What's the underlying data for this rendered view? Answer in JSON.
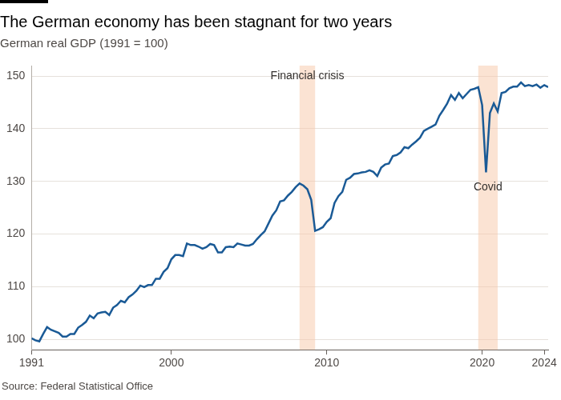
{
  "chart_data": {
    "type": "line",
    "title": "The German economy has been stagnant for two years",
    "subtitle": "German real GDP (1991 = 100)",
    "source": "Source: Federal Statistical Office",
    "color": "#1a5a96",
    "grid": true,
    "x": [
      1991,
      1991.25,
      1991.5,
      1991.75,
      1992,
      1992.25,
      1992.5,
      1992.75,
      1993,
      1993.25,
      1993.5,
      1993.75,
      1994,
      1994.25,
      1994.5,
      1994.75,
      1995,
      1995.25,
      1995.5,
      1995.75,
      1996,
      1996.25,
      1996.5,
      1996.75,
      1997,
      1997.25,
      1997.5,
      1997.75,
      1998,
      1998.25,
      1998.5,
      1998.75,
      1999,
      1999.25,
      1999.5,
      1999.75,
      2000,
      2000.25,
      2000.5,
      2000.75,
      2001,
      2001.25,
      2001.5,
      2001.75,
      2002,
      2002.25,
      2002.5,
      2002.75,
      2003,
      2003.25,
      2003.5,
      2003.75,
      2004,
      2004.25,
      2004.5,
      2004.75,
      2005,
      2005.25,
      2005.5,
      2005.75,
      2006,
      2006.25,
      2006.5,
      2006.75,
      2007,
      2007.25,
      2007.5,
      2007.75,
      2008,
      2008.25,
      2008.5,
      2008.75,
      2009,
      2009.25,
      2009.5,
      2009.75,
      2010,
      2010.25,
      2010.5,
      2010.75,
      2011,
      2011.25,
      2011.5,
      2011.75,
      2012,
      2012.25,
      2012.5,
      2012.75,
      2013,
      2013.25,
      2013.5,
      2013.75,
      2014,
      2014.25,
      2014.5,
      2014.75,
      2015,
      2015.25,
      2015.5,
      2015.75,
      2016,
      2016.25,
      2016.5,
      2016.75,
      2017,
      2017.25,
      2017.5,
      2017.75,
      2018,
      2018.25,
      2018.5,
      2018.75,
      2019,
      2019.25,
      2019.5,
      2019.75,
      2020,
      2020.25,
      2020.5,
      2020.75,
      2021,
      2021.25,
      2021.5,
      2021.75,
      2022,
      2022.25,
      2022.5,
      2022.75,
      2023,
      2023.25,
      2023.5,
      2023.75,
      2024,
      2024.25
    ],
    "values": [
      100.2,
      99.8,
      99.6,
      101.0,
      102.3,
      101.8,
      101.5,
      101.2,
      100.5,
      100.5,
      101.0,
      101.0,
      102.2,
      102.7,
      103.3,
      104.5,
      104.0,
      104.9,
      105.1,
      105.2,
      104.6,
      106.0,
      106.5,
      107.3,
      107.0,
      108.0,
      108.5,
      109.2,
      110.2,
      109.9,
      110.3,
      110.3,
      111.5,
      111.5,
      112.8,
      113.5,
      115.2,
      116.0,
      116.0,
      115.8,
      118.2,
      117.9,
      117.9,
      117.6,
      117.2,
      117.5,
      118.1,
      117.9,
      116.5,
      116.5,
      117.5,
      117.6,
      117.5,
      118.2,
      118.0,
      117.8,
      117.8,
      118.1,
      119.0,
      119.8,
      120.5,
      122.0,
      123.5,
      124.5,
      126.2,
      126.4,
      127.3,
      128.0,
      128.9,
      129.6,
      129.2,
      128.5,
      126.5,
      120.6,
      120.9,
      121.3,
      122.3,
      123.0,
      125.9,
      127.2,
      128.0,
      130.3,
      130.7,
      131.4,
      131.5,
      131.7,
      131.8,
      132.1,
      131.8,
      131.0,
      132.6,
      133.2,
      133.4,
      134.8,
      135.0,
      135.5,
      136.5,
      136.3,
      137.0,
      137.6,
      138.3,
      139.6,
      140.0,
      140.4,
      140.8,
      142.5,
      143.6,
      144.8,
      146.4,
      145.5,
      146.8,
      145.8,
      146.6,
      147.4,
      147.6,
      147.9,
      144.5,
      131.7,
      143.0,
      144.8,
      143.3,
      146.8,
      147.0,
      147.7,
      148.0,
      148.0,
      148.8,
      148.1,
      148.3,
      148.1,
      148.4,
      147.8,
      148.3,
      147.9
    ],
    "xlim": [
      1991,
      2024.25
    ],
    "xticks": [
      1991,
      2000,
      2010,
      2020,
      2024
    ],
    "ylim": [
      98,
      152
    ],
    "yticks": [
      100,
      110,
      120,
      130,
      140,
      150
    ],
    "annotations": [
      {
        "text": "Financial crisis",
        "x_start": 2008.25,
        "x_end": 2009.25
      },
      {
        "text": "Covid",
        "x_start": 2019.75,
        "x_end": 2021
      }
    ]
  }
}
